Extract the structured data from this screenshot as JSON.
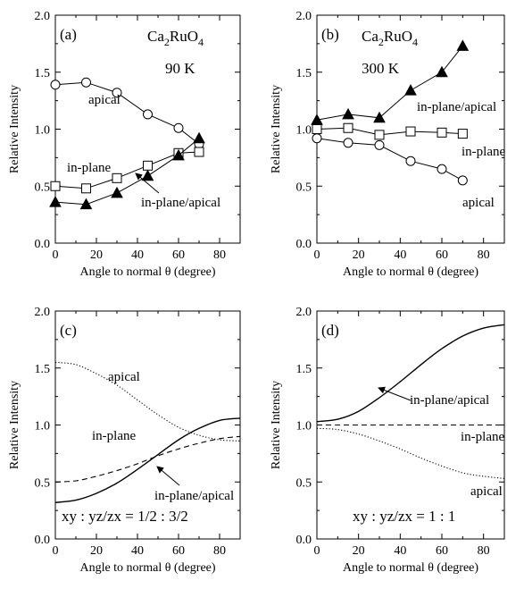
{
  "chart_data": [
    {
      "panel": "(a)",
      "type": "line",
      "annotations": [
        "Ca2RuO4",
        "90 K"
      ],
      "xlabel": "Angle to normal θ (degree)",
      "ylabel": "Relative Intensity",
      "xlim": [
        0,
        90
      ],
      "ylim": [
        0.0,
        2.0
      ],
      "xticks": [
        "0",
        "20",
        "40",
        "60",
        "80"
      ],
      "yticks": [
        "0.0",
        "0.5",
        "1.0",
        "1.5",
        "2.0"
      ],
      "grid": false,
      "x": [
        0,
        15,
        30,
        45,
        60,
        70
      ],
      "series": [
        {
          "name": "apical",
          "marker": "circle-open",
          "values": [
            1.39,
            1.41,
            1.32,
            1.13,
            1.01,
            0.87
          ]
        },
        {
          "name": "in-plane",
          "marker": "square-open",
          "values": [
            0.5,
            0.48,
            0.57,
            0.68,
            0.79,
            0.8
          ]
        },
        {
          "name": "in-plane/apical",
          "marker": "triangle-filled",
          "values": [
            0.36,
            0.34,
            0.44,
            0.59,
            0.77,
            0.92
          ]
        }
      ]
    },
    {
      "panel": "(b)",
      "type": "line",
      "annotations": [
        "Ca2RuO4",
        "300 K"
      ],
      "xlabel": "Angle to normal θ (degree)",
      "ylabel": "Relative Intensity",
      "xlim": [
        0,
        90
      ],
      "ylim": [
        0.0,
        2.0
      ],
      "xticks": [
        "0",
        "20",
        "40",
        "60",
        "80"
      ],
      "yticks": [
        "0.0",
        "0.5",
        "1.0",
        "1.5",
        "2.0"
      ],
      "grid": false,
      "x": [
        0,
        15,
        30,
        45,
        60,
        70
      ],
      "series": [
        {
          "name": "in-plane/apical",
          "marker": "triangle-filled",
          "values": [
            1.08,
            1.13,
            1.1,
            1.34,
            1.5,
            1.73
          ]
        },
        {
          "name": "in-plane",
          "marker": "square-open",
          "values": [
            1.0,
            1.01,
            0.95,
            0.98,
            0.97,
            0.96
          ]
        },
        {
          "name": "apical",
          "marker": "circle-open",
          "values": [
            0.92,
            0.88,
            0.86,
            0.72,
            0.65,
            0.55
          ]
        }
      ]
    },
    {
      "panel": "(c)",
      "type": "line",
      "annotations": [
        "xy : yz/zx = 1/2 : 3/2"
      ],
      "xlabel": "Angle to normal θ (degree)",
      "ylabel": "Relative Intensity",
      "xlim": [
        0,
        90
      ],
      "ylim": [
        0.0,
        2.0
      ],
      "xticks": [
        "0",
        "20",
        "40",
        "60",
        "80"
      ],
      "yticks": [
        "0.0",
        "0.5",
        "1.0",
        "1.5",
        "2.0"
      ],
      "grid": false,
      "x": [
        0,
        10,
        20,
        30,
        40,
        50,
        60,
        70,
        80,
        90
      ],
      "series": [
        {
          "name": "apical",
          "style": "dotted",
          "values": [
            1.55,
            1.53,
            1.45,
            1.35,
            1.22,
            1.09,
            0.98,
            0.91,
            0.87,
            0.86
          ]
        },
        {
          "name": "in-plane",
          "style": "dashed",
          "values": [
            0.5,
            0.51,
            0.55,
            0.6,
            0.66,
            0.73,
            0.79,
            0.84,
            0.88,
            0.9
          ]
        },
        {
          "name": "in-plane/apical",
          "style": "solid",
          "values": [
            0.32,
            0.34,
            0.4,
            0.49,
            0.61,
            0.74,
            0.87,
            0.97,
            1.04,
            1.06
          ]
        }
      ]
    },
    {
      "panel": "(d)",
      "type": "line",
      "annotations": [
        "xy : yz/zx = 1 : 1"
      ],
      "xlabel": "Angle to normal θ (degree)",
      "ylabel": "Relative Intensity",
      "xlim": [
        0,
        90
      ],
      "ylim": [
        0.0,
        2.0
      ],
      "xticks": [
        "0",
        "20",
        "40",
        "60",
        "80"
      ],
      "yticks": [
        "0.0",
        "0.5",
        "1.0",
        "1.5",
        "2.0"
      ],
      "grid": false,
      "x": [
        0,
        10,
        20,
        30,
        40,
        50,
        60,
        70,
        80,
        90
      ],
      "series": [
        {
          "name": "in-plane/apical",
          "style": "solid",
          "values": [
            1.03,
            1.05,
            1.12,
            1.24,
            1.38,
            1.53,
            1.67,
            1.78,
            1.85,
            1.88
          ]
        },
        {
          "name": "in-plane",
          "style": "dashed",
          "values": [
            1.0,
            1.0,
            1.0,
            1.0,
            1.0,
            1.0,
            1.0,
            1.0,
            1.0,
            1.0
          ]
        },
        {
          "name": "apical",
          "style": "dotted",
          "values": [
            0.97,
            0.96,
            0.92,
            0.86,
            0.79,
            0.71,
            0.64,
            0.58,
            0.55,
            0.53
          ]
        }
      ]
    }
  ]
}
